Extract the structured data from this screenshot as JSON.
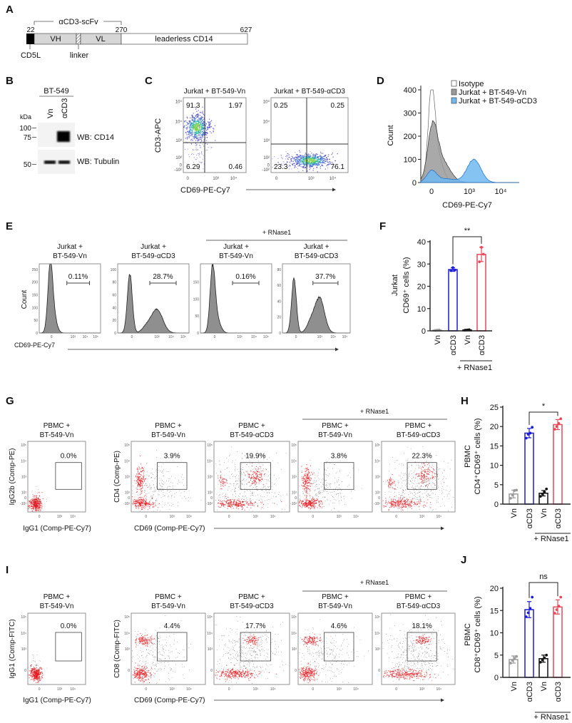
{
  "A": {
    "label": "A",
    "scfv": "αCD3-scFv",
    "pos_start": "22",
    "pos_scfv_end": "270",
    "pos_end": "627",
    "domains": [
      "VH",
      "VL",
      "leaderless CD14"
    ],
    "cd5l": "CD5L",
    "linker": "linker"
  },
  "B": {
    "label": "B",
    "cell_line": "BT-549",
    "lanes": [
      "Vn",
      "αCD3"
    ],
    "kda": "kDa",
    "markers": [
      "100",
      "75",
      "50"
    ],
    "blots": [
      "WB: CD14",
      "WB: Tubulin"
    ]
  },
  "C": {
    "label": "C",
    "ylabel": "CD3-APC",
    "xlabel": "CD69-PE-Cy7",
    "yticks": [
      "10⁵",
      "10⁴",
      "10³",
      "10²",
      "0",
      "-10²"
    ],
    "xticks": [
      "0",
      "10³",
      "10⁴"
    ],
    "plots": [
      {
        "title": "Jurkat + BT-549-Vn",
        "ul": "91.3",
        "ur": "1.97",
        "ll": "6.29",
        "lr": "0.46"
      },
      {
        "title": "Jurkat + BT-549-αCD3",
        "ul": "0.25",
        "ur": "0.25",
        "ll": "23.3",
        "lr": "76.1"
      }
    ]
  },
  "D": {
    "label": "D",
    "ylabel": "Count",
    "xlabel": "CD69-PE-Cy7",
    "yticks": [
      "0",
      "100",
      "200",
      "300",
      "400"
    ],
    "xticks": [
      "0",
      "10³",
      "10⁴"
    ],
    "legend": [
      {
        "name": "Isotype",
        "color": "#ffffff"
      },
      {
        "name": "Jurkat + BT-549-Vn",
        "color": "#9a9a9a"
      },
      {
        "name": "Jurkat + BT-549-αCD3",
        "color": "#6fb8f0"
      }
    ]
  },
  "E": {
    "label": "E",
    "group": "+ RNase1",
    "ylabel": "Count",
    "xlabel": "CD69-PE-Cy7",
    "xticks": [
      "0",
      "10³",
      "10⁴",
      "10⁵"
    ],
    "plots": [
      {
        "line1": "Jurkat +",
        "line2": "BT-549-Vn",
        "gate": "0.11%",
        "yticks": [
          "0",
          "50",
          "100",
          "150",
          "200",
          "250"
        ]
      },
      {
        "line1": "Jurkat +",
        "line2": "BT-549-αCD3",
        "gate": "28.7%",
        "yticks": [
          "0",
          "20",
          "40",
          "60",
          "80",
          "100"
        ]
      },
      {
        "line1": "Jurkat +",
        "line2": "BT-549-Vn",
        "gate": "0.16%",
        "yticks": [
          "0",
          "50",
          "100",
          "150"
        ]
      },
      {
        "line1": "Jurkat +",
        "line2": "BT-549-αCD3",
        "gate": "37.7%",
        "yticks": [
          "0",
          "20",
          "40",
          "60",
          "80"
        ]
      }
    ]
  },
  "G": {
    "label": "G",
    "group": "+ RNase1",
    "iso_ylabel": "IgG2b (Comp-PE)",
    "iso_xlabel": "IgG1 (Comp-PE-Cy7)",
    "ylabel": "CD4 (Comp-PE)",
    "xlabel": "CD69 (Comp-PE-Cy7)",
    "yticks": [
      "10⁵",
      "10⁴",
      "10³",
      "10²",
      "0",
      "-10²"
    ],
    "xticks": [
      "0",
      "10³",
      "10⁴"
    ],
    "plots": [
      {
        "line1": "PBMC +",
        "line2": "BT-549-Vn",
        "gate": "0.0%"
      },
      {
        "line1": "PBMC +",
        "line2": "BT-549-Vn",
        "gate": "3.9%"
      },
      {
        "line1": "PBMC +",
        "line2": "BT-549-αCD3",
        "gate": "19.9%"
      },
      {
        "line1": "PBMC +",
        "line2": "BT-549-Vn",
        "gate": "3.8%"
      },
      {
        "line1": "PBMC +",
        "line2": "BT-549-αCD3",
        "gate": "22.3%"
      }
    ]
  },
  "I": {
    "label": "I",
    "group": "+ RNase1",
    "iso_ylabel": "IgG1 (Comp-FITC)",
    "iso_xlabel": "IgG1 (Comp-PE-Cy7)",
    "ylabel": "CD8 (Comp-FITC)",
    "xlabel": "CD69 (Comp-PE-Cy7)",
    "yticks": [
      "10⁵",
      "10⁴",
      "10³",
      "0"
    ],
    "xticks": [
      "0",
      "10³",
      "10⁴"
    ],
    "plots": [
      {
        "line1": "PBMC +",
        "line2": "BT-549-Vn",
        "gate": "0.0%"
      },
      {
        "line1": "PBMC +",
        "line2": "BT-549-Vn",
        "gate": "4.4%"
      },
      {
        "line1": "PBMC +",
        "line2": "BT-549-αCD3",
        "gate": "17.7%"
      },
      {
        "line1": "PBMC +",
        "line2": "BT-549-Vn",
        "gate": "4.6%"
      },
      {
        "line1": "PBMC +",
        "line2": "BT-549-αCD3",
        "gate": "18.1%"
      }
    ]
  },
  "chart_data": [
    {
      "panel": "F",
      "label": "F",
      "type": "bar",
      "ylabel_1": "Jurkat",
      "ylabel_2": "CD69⁺ cells (%)",
      "categories": [
        "Vn",
        "αCD3",
        "Vn",
        "αCD3"
      ],
      "group": "+ RNase1",
      "values": [
        0.3,
        27.5,
        0.4,
        34.3
      ],
      "errors": [
        0.2,
        0.8,
        0.2,
        3.2
      ],
      "points": [
        [
          0.2,
          0.3,
          0.4
        ],
        [
          27.0,
          28.4,
          27.3
        ],
        [
          0.3,
          0.4,
          0.5
        ],
        [
          31.0,
          37.5,
          34.4
        ]
      ],
      "colors": [
        "#9a9a9a",
        "#1c1cd8",
        "#111111",
        "#e8485a"
      ],
      "ylim": [
        0,
        40
      ],
      "yticks": [
        0,
        10,
        20,
        30,
        40
      ],
      "significance": "**"
    },
    {
      "panel": "H",
      "label": "H",
      "type": "bar",
      "ylabel_1": "PBMC",
      "ylabel_2": "CD4⁺CD69⁺ cells (%)",
      "categories": [
        "Vn",
        "αCD3",
        "Vn",
        "αCD3"
      ],
      "group": "+ RNase1",
      "values": [
        2.6,
        18.3,
        2.8,
        20.5
      ],
      "errors": [
        1.0,
        1.2,
        0.7,
        1.3
      ],
      "points": [
        [
          1.5,
          2.3,
          3.5,
          3.6
        ],
        [
          17.0,
          18.0,
          18.3,
          19.8
        ],
        [
          2.0,
          2.6,
          3.1,
          3.9
        ],
        [
          19.3,
          20.0,
          20.8,
          22.0
        ]
      ],
      "colors": [
        "#9a9a9a",
        "#1c1cd8",
        "#111111",
        "#e8485a"
      ],
      "ylim": [
        0,
        25
      ],
      "yticks": [
        0,
        5,
        10,
        15,
        20,
        25
      ],
      "significance": "*"
    },
    {
      "panel": "J",
      "label": "J",
      "type": "bar",
      "ylabel_1": "PBMC",
      "ylabel_2": "CD8⁺CD69⁺ cells (%)",
      "categories": [
        "Vn",
        "αCD3",
        "Vn",
        "αCD3"
      ],
      "group": "+ RNase1",
      "values": [
        4.0,
        15.2,
        4.2,
        15.8
      ],
      "errors": [
        0.8,
        1.8,
        0.8,
        1.6
      ],
      "points": [
        [
          3.2,
          3.8,
          4.3,
          4.7
        ],
        [
          13.6,
          14.5,
          15.5,
          18.0
        ],
        [
          3.4,
          3.9,
          4.4,
          5.0
        ],
        [
          14.4,
          15.2,
          16.0,
          18.0
        ]
      ],
      "colors": [
        "#9a9a9a",
        "#1c1cd8",
        "#111111",
        "#e8485a"
      ],
      "ylim": [
        0,
        20
      ],
      "yticks": [
        0,
        5,
        10,
        15,
        20
      ],
      "significance": "ns"
    }
  ]
}
